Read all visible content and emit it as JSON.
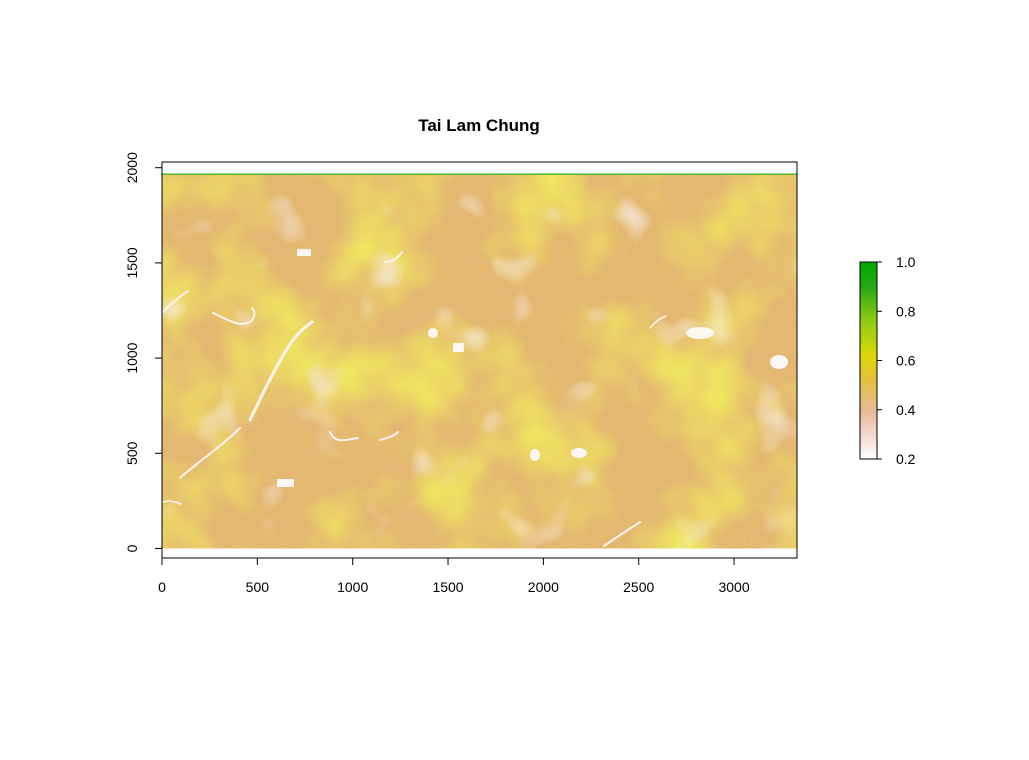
{
  "chart_data": {
    "type": "heatmap",
    "title": "Tai Lam Chung",
    "xlabel": "",
    "ylabel": "",
    "xlim": [
      0,
      3330
    ],
    "ylim": [
      -50,
      2030
    ],
    "raster_extent": {
      "x": [
        0,
        3330
      ],
      "y": [
        0,
        1970
      ]
    },
    "x_ticks": [
      0,
      500,
      1000,
      1500,
      2000,
      2500,
      3000
    ],
    "y_ticks": [
      0,
      500,
      1000,
      1500,
      2000
    ],
    "x_tick_labels": [
      "0",
      "500",
      "1000",
      "1500",
      "2000",
      "2500",
      "3000"
    ],
    "y_tick_labels": [
      "0",
      "500",
      "1000",
      "1500",
      "2000"
    ],
    "legend": {
      "placement": "right",
      "range": [
        0.2,
        1.0
      ],
      "ticks": [
        0.2,
        0.4,
        0.6,
        0.8,
        1.0
      ],
      "tick_labels": [
        "0.2",
        "0.4",
        "0.6",
        "0.8",
        "1.0"
      ],
      "colors": [
        "#ffffff",
        "#f2d8d1",
        "#e7b993",
        "#e2c233",
        "#dcd80a",
        "#8fcb14",
        "#22a813",
        "#00a600"
      ]
    },
    "dominant_value": 0.45,
    "grid": false
  }
}
